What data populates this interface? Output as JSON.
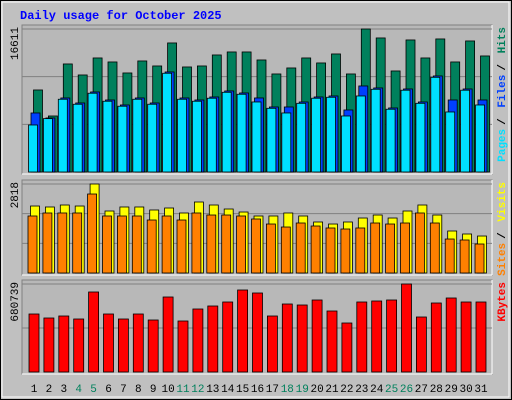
{
  "chart_data": [
    {
      "type": "bar",
      "title": "Daily usage for October 2025",
      "legend_separator": "/",
      "ylim": [
        0,
        16611
      ],
      "yticks": [
        16611
      ],
      "grid": true,
      "series": [
        {
          "name": "Pages",
          "color": "#00e0ff",
          "values": [
            5461,
            6200,
            8450,
            7870,
            9150,
            8220,
            7640,
            8450,
            7870,
            11470,
            8450,
            8220,
            8570,
            9260,
            9030,
            8134,
            7400,
            6856,
            7980,
            8570,
            8680,
            6507,
            8831,
            9610,
            7290,
            9500,
            7980,
            11000,
            6972,
            9500,
            7785
          ]
        },
        {
          "name": "Files",
          "color": "#0040ff",
          "values": [
            6856,
            6275,
            8599,
            8018,
            9296,
            8366,
            7785,
            8599,
            8018,
            11620,
            8599,
            8366,
            8715,
            9412,
            9180,
            8599,
            7553,
            7553,
            8134,
            8715,
            8831,
            7204,
            9993,
            9761,
            7437,
            9645,
            8134,
            11155,
            8366,
            9645,
            8366
          ]
        },
        {
          "name": "Hits",
          "color": "#00805c",
          "values": [
            9528,
            6507,
            12550,
            11271,
            13247,
            12782,
            11504,
            12898,
            12317,
            14990,
            12201,
            12317,
            13595,
            13944,
            13944,
            13014,
            11388,
            12085,
            13247,
            12666,
            13712,
            11388,
            16611,
            15571,
            11736,
            15338,
            13247,
            15455,
            12782,
            15222,
            13479
          ]
        }
      ]
    },
    {
      "type": "bar",
      "legend_separator": "/",
      "ylim": [
        0,
        2818
      ],
      "yticks": [
        2818
      ],
      "grid": true,
      "series": [
        {
          "name": "Sites",
          "color": "#ff8000",
          "values": [
            1805,
            1900,
            1900,
            1900,
            2501,
            1805,
            1805,
            1805,
            1678,
            1805,
            1678,
            1900,
            1836,
            1836,
            1805,
            1710,
            1551,
            1456,
            1583,
            1488,
            1425,
            1393,
            1425,
            1583,
            1551,
            1583,
            1900,
            1583,
            1076,
            1045,
            918
          ]
        },
        {
          "name": "Visits",
          "color": "#ffff00",
          "values": [
            2121,
            2090,
            2153,
            2121,
            2818,
            1963,
            2090,
            2090,
            1995,
            2058,
            1900,
            2248,
            2153,
            2026,
            1931,
            1805,
            1805,
            1900,
            1805,
            1615,
            1551,
            1615,
            1741,
            1836,
            1741,
            1963,
            2153,
            1836,
            1330,
            1235,
            1171
          ]
        }
      ]
    },
    {
      "type": "bar",
      "ylim": [
        0,
        680739
      ],
      "yticks": [
        680739
      ],
      "grid": true,
      "categories": [
        "1",
        "2",
        "3",
        "4",
        "5",
        "6",
        "7",
        "8",
        "9",
        "10",
        "11",
        "12",
        "13",
        "14",
        "15",
        "16",
        "17",
        "18",
        "19",
        "20",
        "21",
        "22",
        "23",
        "24",
        "25",
        "26",
        "27",
        "28",
        "29",
        "30",
        "31"
      ],
      "category_colors": [
        "#000000",
        "#000000",
        "#000000",
        "#00805c",
        "#00805c",
        "#000000",
        "#000000",
        "#000000",
        "#000000",
        "#000000",
        "#00805c",
        "#00805c",
        "#000000",
        "#000000",
        "#000000",
        "#000000",
        "#000000",
        "#00805c",
        "#00805c",
        "#000000",
        "#000000",
        "#000000",
        "#000000",
        "#000000",
        "#00805c",
        "#00805c",
        "#000000",
        "#000000",
        "#000000",
        "#000000",
        "#000000"
      ],
      "series": [
        {
          "name": "KBytes",
          "color": "#ff0000",
          "values": [
            448688,
            417744,
            433216,
            410008,
            618880,
            448688,
            410008,
            448688,
            402272,
            580200,
            394536,
            487368,
            510576,
            541520,
            634352,
            611144,
            433216,
            526048,
            518312,
            556992,
            471896,
            379064,
            541520,
            549256,
            556992,
            680739,
            425480,
            533784,
            572464,
            541520,
            541520
          ]
        }
      ]
    }
  ]
}
